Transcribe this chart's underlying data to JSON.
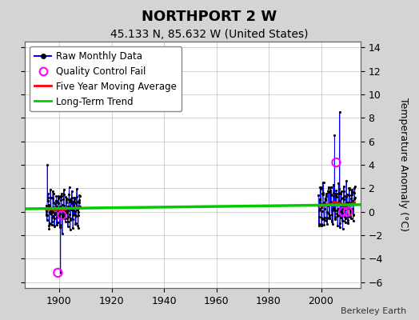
{
  "title": "NORTHPORT 2 W",
  "subtitle": "45.133 N, 85.632 W (United States)",
  "ylabel_right": "Temperature Anomaly (°C)",
  "credit": "Berkeley Earth",
  "xlim": [
    1887,
    2015
  ],
  "ylim": [
    -6.5,
    14.5
  ],
  "yticks": [
    -6,
    -4,
    -2,
    0,
    2,
    4,
    6,
    8,
    10,
    12,
    14
  ],
  "xticks": [
    1900,
    1920,
    1940,
    1960,
    1980,
    2000
  ],
  "bg_color": "#d4d4d4",
  "plot_bg_color": "#ffffff",
  "grid_color": "#b0b0b0",
  "raw_line_color": "#0000ff",
  "raw_dot_color": "#000000",
  "qc_color": "#ff00ff",
  "moving_avg_color": "#ff0000",
  "trend_color": "#00cc00",
  "title_fontsize": 13,
  "subtitle_fontsize": 10,
  "tick_fontsize": 9,
  "label_fontsize": 9,
  "legend_fontsize": 8.5
}
